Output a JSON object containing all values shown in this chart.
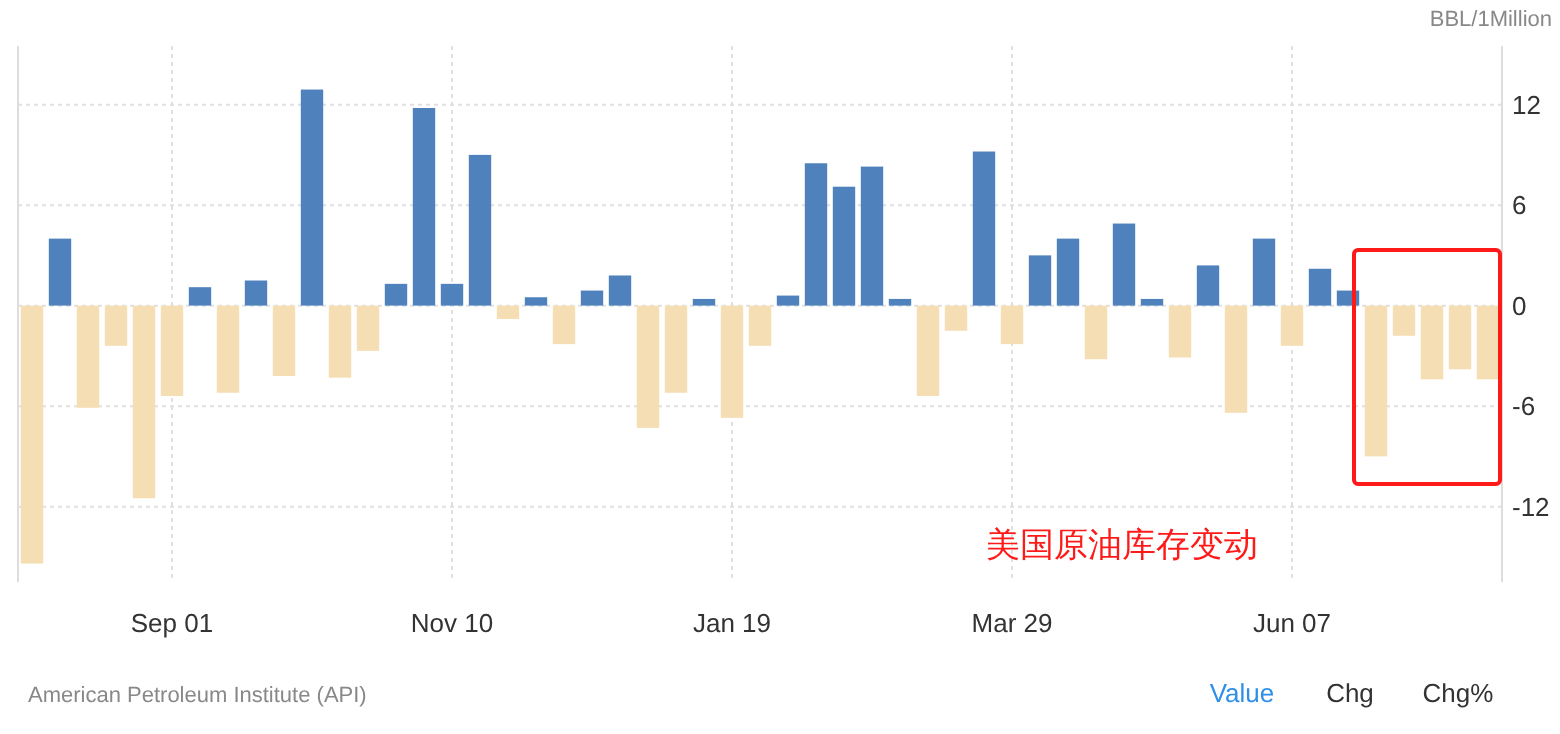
{
  "chart_data": {
    "type": "bar",
    "ylabel": "BBL/1Million",
    "categories": [
      null,
      null,
      null,
      null,
      null,
      "Sep 01",
      null,
      null,
      null,
      null,
      null,
      null,
      null,
      null,
      null,
      "Nov 10",
      null,
      null,
      null,
      null,
      null,
      null,
      null,
      null,
      null,
      "Jan 19",
      null,
      null,
      null,
      null,
      null,
      null,
      null,
      null,
      null,
      "Mar 29",
      null,
      null,
      null,
      null,
      null,
      null,
      null,
      null,
      null,
      "Jun 07",
      null,
      null,
      null,
      null,
      null,
      null,
      null
    ],
    "values": [
      -15.4,
      4.0,
      -6.1,
      -2.4,
      -11.5,
      -5.4,
      1.1,
      -5.2,
      1.5,
      -4.2,
      12.9,
      -4.3,
      -2.7,
      1.3,
      11.8,
      1.3,
      9.0,
      -0.8,
      0.5,
      -2.3,
      0.9,
      1.8,
      -7.3,
      -5.2,
      0.4,
      -6.7,
      -2.4,
      0.6,
      8.5,
      7.1,
      8.3,
      0.4,
      -5.4,
      -1.5,
      9.2,
      -2.3,
      3.0,
      4.0,
      -3.2,
      4.9,
      0.4,
      -3.1,
      2.4,
      -6.4,
      4.0,
      -2.4,
      2.2,
      0.9,
      -9.0,
      -1.8,
      -4.4,
      -3.8,
      -4.4
    ],
    "colors": [
      "#f5deb3",
      "#4f81bd",
      "#f5deb3",
      "#f5deb3",
      "#f5deb3",
      "#f5deb3",
      "#4f81bd",
      "#f5deb3",
      "#4f81bd",
      "#f5deb3",
      "#4f81bd",
      "#f5deb3",
      "#f5deb3",
      "#4f81bd",
      "#4f81bd",
      "#4f81bd",
      "#4f81bd",
      "#f5deb3",
      "#4f81bd",
      "#f5deb3",
      "#4f81bd",
      "#4f81bd",
      "#f5deb3",
      "#f5deb3",
      "#4f81bd",
      "#f5deb3",
      "#f5deb3",
      "#4f81bd",
      "#4f81bd",
      "#4f81bd",
      "#4f81bd",
      "#4f81bd",
      "#f5deb3",
      "#f5deb3",
      "#4f81bd",
      "#f5deb3",
      "#4f81bd",
      "#4f81bd",
      "#f5deb3",
      "#4f81bd",
      "#4f81bd",
      "#f5deb3",
      "#4f81bd",
      "#f5deb3",
      "#4f81bd",
      "#f5deb3",
      "#4f81bd",
      "#4f81bd",
      "#f5deb3",
      "#f5deb3",
      "#f5deb3",
      "#f5deb3",
      "#f5deb3"
    ],
    "ylim": [
      -16.5,
      15.5
    ],
    "yticks": [
      -12,
      -6,
      0,
      6,
      12
    ],
    "grid": true,
    "annotations": [
      "American Petroleum Institute (API)",
      "美国原油库存变动",
      "Value",
      "Chg",
      "Chg%"
    ]
  }
}
